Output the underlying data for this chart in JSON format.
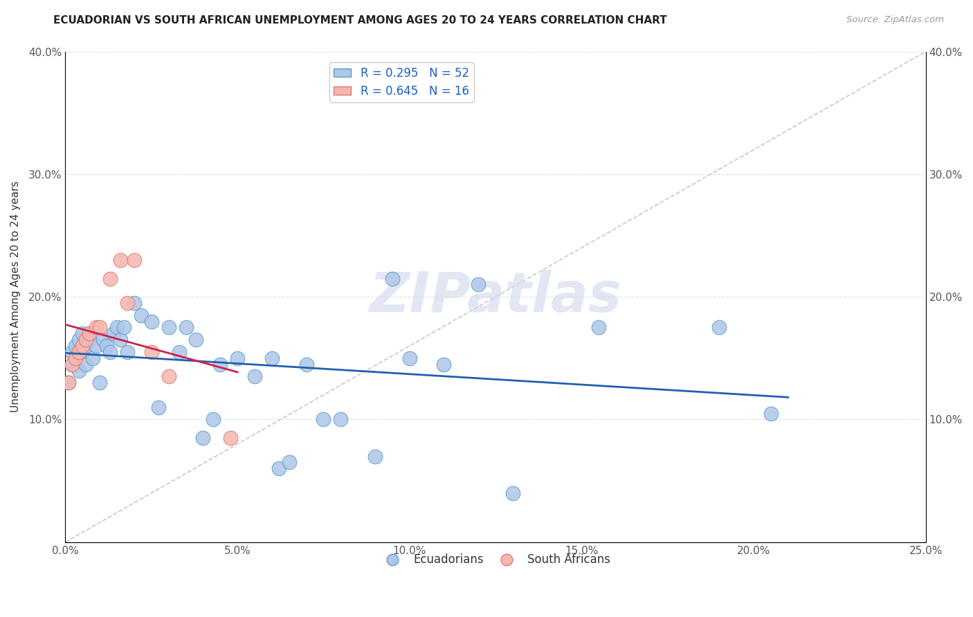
{
  "title": "ECUADORIAN VS SOUTH AFRICAN UNEMPLOYMENT AMONG AGES 20 TO 24 YEARS CORRELATION CHART",
  "source": "Source: ZipAtlas.com",
  "xlabel": "",
  "ylabel": "Unemployment Among Ages 20 to 24 years",
  "xlim": [
    0.0,
    0.25
  ],
  "ylim": [
    0.0,
    0.4
  ],
  "xticks": [
    0.0,
    0.05,
    0.1,
    0.15,
    0.2,
    0.25
  ],
  "yticks": [
    0.0,
    0.1,
    0.2,
    0.3,
    0.4
  ],
  "xticklabels": [
    "0.0%",
    "5.0%",
    "10.0%",
    "15.0%",
    "20.0%",
    "25.0%"
  ],
  "yticklabels": [
    "",
    "10.0%",
    "20.0%",
    "30.0%",
    "40.0%"
  ],
  "blue_fill": "#aec6e8",
  "pink_fill": "#f4b8b0",
  "blue_edge": "#5a9fc8",
  "pink_edge": "#e87070",
  "trend_blue": "#2060b0",
  "trend_pink": "#d02050",
  "r_blue": 0.295,
  "n_blue": 52,
  "r_pink": 0.645,
  "n_pink": 16,
  "watermark": "ZIPatlas",
  "legend_labels": [
    "Ecuadorians",
    "South Africans"
  ],
  "ecu_x": [
    0.001,
    0.002,
    0.002,
    0.003,
    0.003,
    0.004,
    0.004,
    0.005,
    0.005,
    0.006,
    0.006,
    0.007,
    0.007,
    0.008,
    0.009,
    0.01,
    0.011,
    0.012,
    0.013,
    0.014,
    0.015,
    0.016,
    0.017,
    0.018,
    0.02,
    0.022,
    0.025,
    0.027,
    0.03,
    0.033,
    0.035,
    0.038,
    0.04,
    0.043,
    0.045,
    0.05,
    0.055,
    0.06,
    0.062,
    0.065,
    0.07,
    0.075,
    0.08,
    0.09,
    0.095,
    0.1,
    0.11,
    0.12,
    0.13,
    0.155,
    0.19,
    0.205
  ],
  "ecu_y": [
    0.13,
    0.145,
    0.155,
    0.15,
    0.16,
    0.14,
    0.165,
    0.155,
    0.17,
    0.145,
    0.16,
    0.17,
    0.165,
    0.15,
    0.16,
    0.13,
    0.165,
    0.16,
    0.155,
    0.17,
    0.175,
    0.165,
    0.175,
    0.155,
    0.195,
    0.185,
    0.18,
    0.11,
    0.175,
    0.155,
    0.175,
    0.165,
    0.085,
    0.1,
    0.145,
    0.15,
    0.135,
    0.15,
    0.06,
    0.065,
    0.145,
    0.1,
    0.1,
    0.07,
    0.215,
    0.15,
    0.145,
    0.21,
    0.04,
    0.175,
    0.175,
    0.105
  ],
  "sa_x": [
    0.001,
    0.002,
    0.003,
    0.004,
    0.005,
    0.006,
    0.007,
    0.009,
    0.01,
    0.013,
    0.016,
    0.018,
    0.02,
    0.025,
    0.03,
    0.048
  ],
  "sa_y": [
    0.13,
    0.145,
    0.15,
    0.155,
    0.16,
    0.165,
    0.17,
    0.175,
    0.175,
    0.215,
    0.23,
    0.195,
    0.23,
    0.155,
    0.135,
    0.085
  ],
  "diag_color": "#c8c8c8",
  "grid_color": "#e0e0e0",
  "watermark_color": "#d0d8ec"
}
